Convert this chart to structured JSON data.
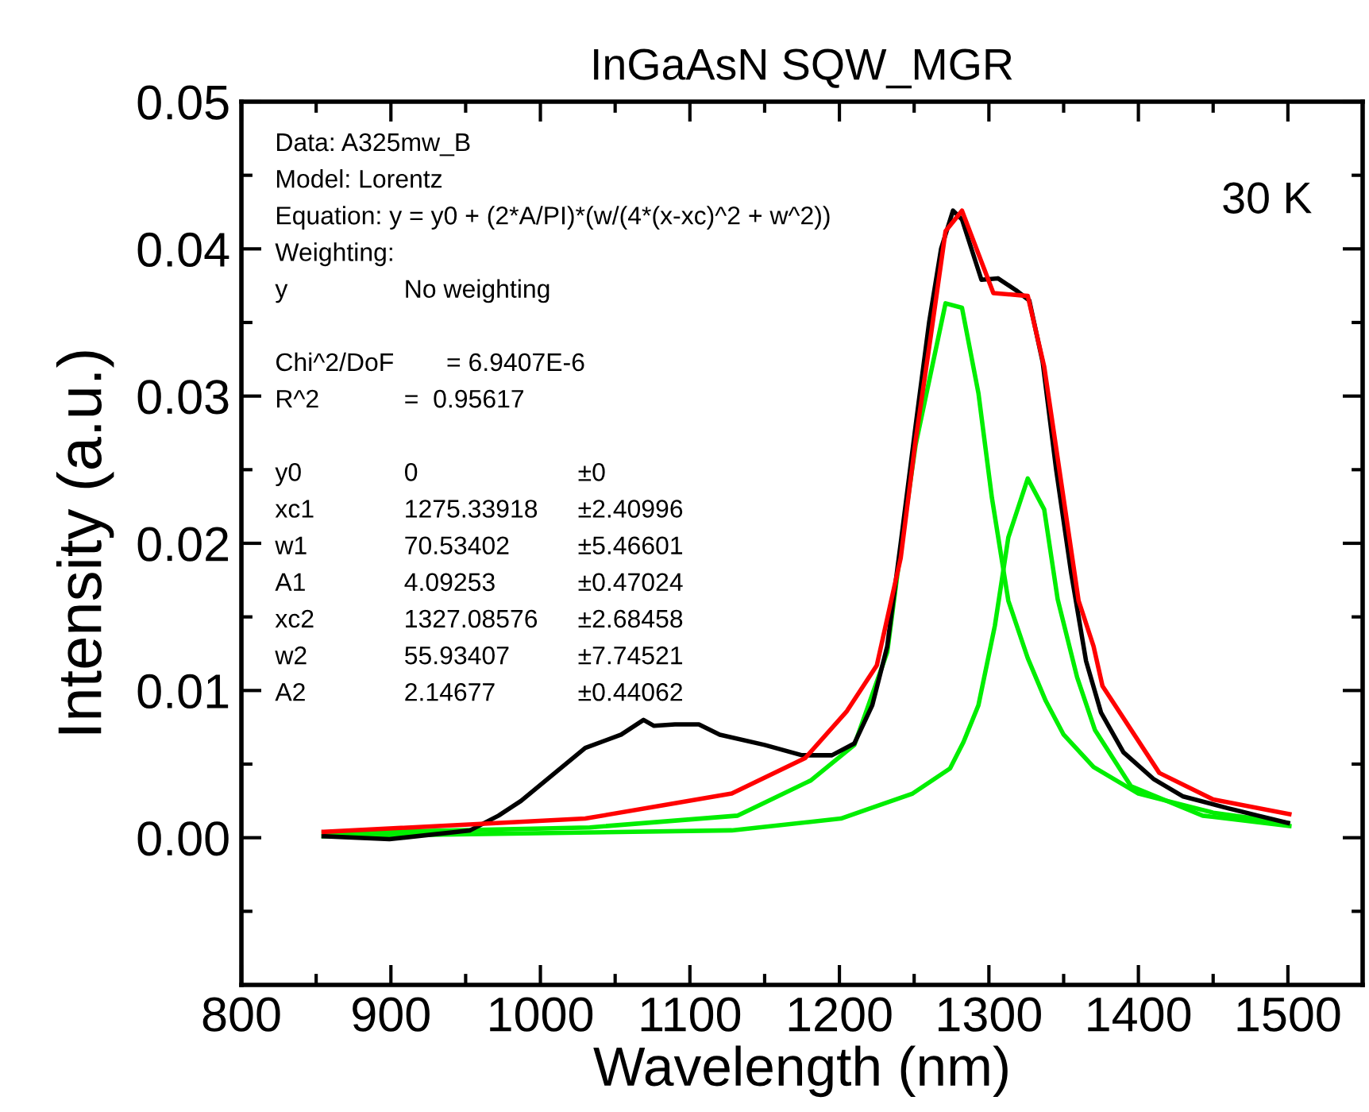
{
  "chart_data": {
    "type": "line",
    "title": "InGaAsN SQW_MGR",
    "xlabel": "Wavelength (nm)",
    "ylabel": "Intensity (a.u.)",
    "xlim": [
      800,
      1550
    ],
    "ylim": [
      -0.01,
      0.05
    ],
    "xticks": [
      800,
      {
        "value": 850,
        "label": null
      },
      900,
      {
        "value": 950,
        "label": null
      },
      1000,
      {
        "value": 1050,
        "label": null
      },
      1100,
      {
        "value": 1150,
        "label": null
      },
      1200,
      {
        "value": 1250,
        "label": null
      },
      1300,
      {
        "value": 1350,
        "label": null
      },
      1400,
      {
        "value": 1450,
        "label": null
      },
      1500
    ],
    "yticks": [
      {
        "value": -0.005,
        "label": null
      },
      {
        "value": 0,
        "label": "0.00"
      },
      {
        "value": 0.005,
        "label": null
      },
      {
        "value": 0.01,
        "label": "0.01"
      },
      {
        "value": 0.015,
        "label": null
      },
      {
        "value": 0.02,
        "label": "0.02"
      },
      {
        "value": 0.025,
        "label": null
      },
      {
        "value": 0.03,
        "label": "0.03"
      },
      {
        "value": 0.035,
        "label": null
      },
      {
        "value": 0.04,
        "label": "0.04"
      },
      {
        "value": 0.045,
        "label": null
      },
      {
        "value": 0.05,
        "label": "0.05"
      }
    ],
    "grid": false,
    "legend": false,
    "marker": "none",
    "line_style": "solid",
    "annotations": [
      "Data: A325mw_B",
      "Model: Lorentz",
      "Equation: y = y0 + (2*A/PI)*(w/(4*(x-xc)^2 + w^2))",
      "Weighting:",
      "y\tNo weighting",
      "Chi^2/DoF\t      = 6.9407E-6",
      "R^2\t=  0.95617",
      "y0\t0\t±0",
      "xc1\t1275.33918\t±2.40996",
      "w1\t70.53402\t±5.46601",
      "A1\t4.09253\t±0.47024",
      "xc2\t1327.08576\t±2.68458",
      "w2\t55.93407\t±7.74521",
      "A2\t2.14677\t±0.44062",
      "30 K"
    ],
    "series": [
      {
        "color": "#000000",
        "x": [
          855,
          899,
          953,
          972,
          987,
          1030,
          1054,
          1069,
          1076,
          1090,
          1106,
          1120,
          1150,
          1175,
          1195,
          1210,
          1222,
          1232,
          1241,
          1251,
          1260,
          1268,
          1276,
          1282,
          1295,
          1306,
          1318,
          1327,
          1336,
          1345,
          1355,
          1365,
          1375,
          1390,
          1410,
          1430,
          1460,
          1480,
          1500
        ],
        "values": [
          0.0001,
          -0.0001,
          0.0005,
          0.0015,
          0.0025,
          0.0061,
          0.007,
          0.008,
          0.0076,
          0.0077,
          0.0077,
          0.007,
          0.0063,
          0.0056,
          0.0056,
          0.0064,
          0.009,
          0.013,
          0.02,
          0.028,
          0.035,
          0.04,
          0.0426,
          0.042,
          0.0379,
          0.038,
          0.0372,
          0.0365,
          0.0323,
          0.025,
          0.018,
          0.012,
          0.0085,
          0.0058,
          0.004,
          0.0028,
          0.002,
          0.0015,
          0.001
        ]
      },
      {
        "color": "#00ee00",
        "x": [
          855,
          1033,
          1132,
          1181,
          1210,
          1232,
          1241,
          1251,
          1271,
          1282,
          1293,
          1302,
          1313,
          1326,
          1338,
          1350,
          1370,
          1400,
          1450,
          1500
        ],
        "values": [
          0.0003,
          0.0007,
          0.0015,
          0.0039,
          0.0063,
          0.0126,
          0.0196,
          0.0267,
          0.0363,
          0.036,
          0.0302,
          0.0231,
          0.0161,
          0.0122,
          0.0093,
          0.007,
          0.0048,
          0.003,
          0.0017,
          0.001
        ]
      },
      {
        "color": "#00ee00",
        "x": [
          855,
          1128,
          1201,
          1249,
          1274,
          1283,
          1293,
          1304,
          1313,
          1326,
          1337,
          1346,
          1359,
          1371,
          1395,
          1443,
          1501
        ],
        "values": [
          0.0001,
          0.0005,
          0.0013,
          0.003,
          0.0047,
          0.0065,
          0.009,
          0.0144,
          0.0204,
          0.0244,
          0.0223,
          0.0162,
          0.0109,
          0.0073,
          0.0035,
          0.0015,
          0.0008
        ]
      },
      {
        "color": "#ff0000",
        "x": [
          855,
          1030,
          1128,
          1177,
          1205,
          1225,
          1241,
          1251,
          1261,
          1271,
          1282,
          1303,
          1326,
          1337,
          1360,
          1370,
          1376,
          1414,
          1450,
          1501
        ],
        "values": [
          0.0004,
          0.0013,
          0.003,
          0.0054,
          0.0086,
          0.0117,
          0.019,
          0.027,
          0.034,
          0.0412,
          0.0426,
          0.037,
          0.0368,
          0.032,
          0.0161,
          0.013,
          0.0103,
          0.0044,
          0.0026,
          0.0016
        ]
      }
    ]
  }
}
